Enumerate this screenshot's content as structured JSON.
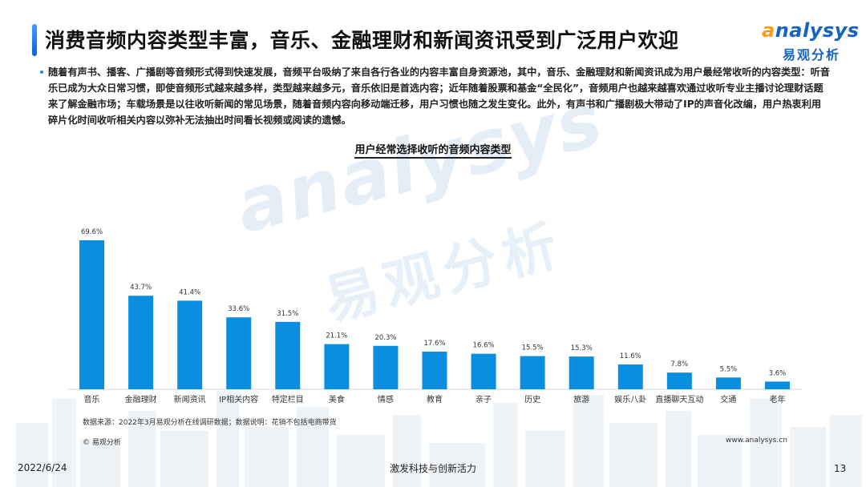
{
  "header": {
    "title": "消费音频内容类型丰富，音乐、金融理财和新闻资讯受到广泛用户欢迎"
  },
  "logo": {
    "en_prefix": "a",
    "en_rest": "nalysys",
    "cn": "易观分析"
  },
  "watermark": {
    "en": "analysys",
    "cn": "易观分析"
  },
  "bullet": {
    "text": "随着有声书、播客、广播剧等音频形式得到快速发展，音频平台吸纳了来自各行各业的内容丰富自身资源池，其中，音乐、金融理财和新闻资讯成为用户最经常收听的内容类型：听音乐已成为大众日常习惯，即使音频形式越来越多样，类型越来越多元，音乐依旧是首选内容；近年随着股票和基金“全民化”，音频用户也越来越喜欢通过收听专业主播讨论理财话题来了解金融市场；车载场景是以往收听新闻的常见场景，随着音频内容向移动端迁移，用户习惯也随之发生变化。此外，有声书和广播剧极大带动了IP的声音化改编，用户热衷利用碎片化时间收听相关内容以弥补无法抽出时间看长视频或阅读的遗憾。"
  },
  "chart_data": {
    "type": "bar",
    "title": "用户经常选择收听的音频内容类型",
    "categories": [
      "音乐",
      "金融理财",
      "新闻资讯",
      "IP相关内容",
      "特定栏目",
      "美食",
      "情感",
      "教育",
      "亲子",
      "历史",
      "旅游",
      "娱乐八卦",
      "直播聊天互动",
      "交通",
      "老年"
    ],
    "values": [
      69.6,
      43.7,
      41.4,
      33.6,
      31.5,
      21.1,
      20.3,
      17.6,
      16.6,
      15.5,
      15.3,
      11.6,
      7.8,
      5.5,
      3.6
    ],
    "value_labels": [
      "69.6%",
      "43.7%",
      "41.4%",
      "33.6%",
      "31.5%",
      "21.1%",
      "20.3%",
      "17.6%",
      "16.6%",
      "15.5%",
      "15.3%",
      "11.6%",
      "7.8%",
      "5.5%",
      "3.6%"
    ],
    "unit": "%",
    "ylim": [
      0,
      70
    ],
    "bar_color": "#0a8fe0",
    "grid": false
  },
  "footer": {
    "source": "数据来源：2022年3月易观分析在线调研数据；数据说明：花销不包括电商带货",
    "copyright": "© 易观分析",
    "website": "www.analysys.cn",
    "date": "2022/6/24",
    "slogan": "激发科技与创新活力",
    "page": "13"
  },
  "colors": {
    "accent": "#1565c0",
    "orange": "#ff9a1a",
    "bar": "#0a8fe0"
  }
}
